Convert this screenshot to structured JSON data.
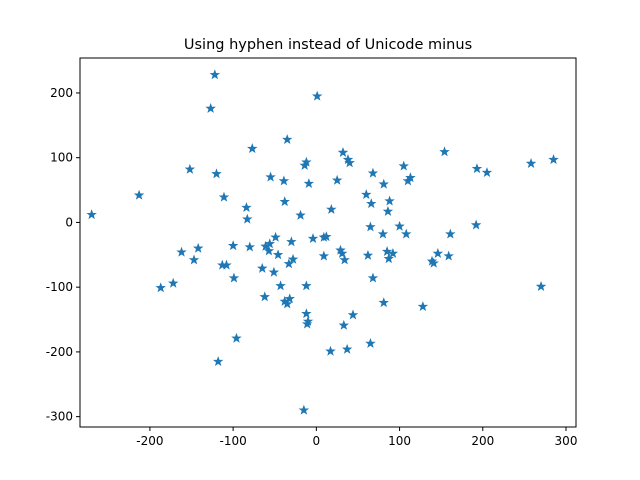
{
  "chart_data": {
    "type": "scatter",
    "title": "Using hyphen instead of Unicode minus",
    "xlabel": "",
    "ylabel": "",
    "xlim": [
      -284,
      312
    ],
    "ylim": [
      -316,
      254
    ],
    "xticks": [
      -200,
      -100,
      0,
      100,
      200,
      300
    ],
    "yticks": [
      -300,
      -200,
      -100,
      0,
      100,
      200
    ],
    "xtick_labels": [
      "-200",
      "-100",
      "0",
      "100",
      "200",
      "300"
    ],
    "ytick_labels": [
      "-300",
      "-200",
      "-100",
      "0",
      "100",
      "200"
    ],
    "grid": false,
    "marker": "star",
    "color": "#1f77b4",
    "series": [
      {
        "x": [
          -122,
          -127,
          1,
          -35,
          -77,
          -14,
          -12,
          32,
          154,
          -120,
          -152,
          -111,
          -39,
          -55,
          -9,
          25,
          38,
          40,
          68,
          81,
          86,
          88,
          60,
          66,
          105,
          110,
          113,
          193,
          205,
          258,
          285,
          -270,
          -213,
          -84,
          -83,
          -38,
          -49,
          -30,
          -19,
          18,
          12,
          9,
          -4,
          -100,
          -108,
          -142,
          -162,
          -147,
          -113,
          -99,
          -80,
          -61,
          -56,
          -51,
          -43,
          -35,
          -33,
          -28,
          -12,
          -65,
          -38,
          -32,
          -46,
          -57,
          -62,
          -12,
          -10,
          31,
          29,
          34,
          65,
          62,
          68,
          80,
          85,
          87,
          92,
          100,
          108,
          139,
          141,
          146,
          159,
          161,
          192,
          270,
          -172,
          -187,
          -96,
          -118,
          -15,
          -11,
          9,
          17,
          33,
          37,
          44,
          65,
          81,
          128
        ],
        "y": [
          228,
          176,
          195,
          128,
          114,
          88,
          93,
          108,
          109,
          75,
          82,
          39,
          64,
          70,
          60,
          65,
          97,
          92,
          76,
          59,
          17,
          33,
          43,
          29,
          87,
          64,
          69,
          83,
          77,
          91,
          97,
          12,
          42,
          23,
          5,
          32,
          -23,
          -30,
          11,
          20,
          -22,
          -52,
          -25,
          -36,
          -66,
          -40,
          -46,
          -58,
          -66,
          -86,
          -38,
          -37,
          -33,
          -77,
          -98,
          -126,
          -64,
          -57,
          -98,
          -71,
          -122,
          -118,
          -50,
          -44,
          -115,
          -141,
          -153,
          -48,
          -43,
          -58,
          -7,
          -51,
          -86,
          -18,
          -45,
          -56,
          -48,
          -6,
          -18,
          -60,
          -63,
          -48,
          -52,
          -18,
          -4,
          -99,
          -94,
          -101,
          -179,
          -215,
          -290,
          -157,
          -23,
          -199,
          -159,
          -196,
          -143,
          -187,
          -124,
          -130
        ]
      }
    ]
  }
}
